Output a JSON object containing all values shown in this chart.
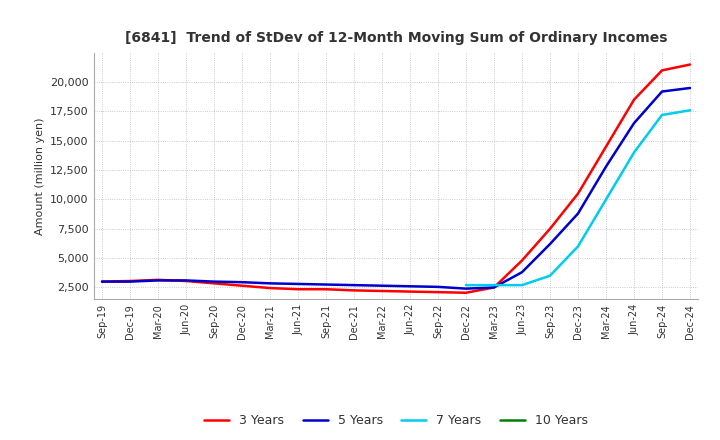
{
  "title": "[6841]  Trend of StDev of 12-Month Moving Sum of Ordinary Incomes",
  "ylabel": "Amount (million yen)",
  "ylim": [
    1500,
    22500
  ],
  "yticks": [
    2500,
    5000,
    7500,
    10000,
    12500,
    15000,
    17500,
    20000
  ],
  "background_color": "#ffffff",
  "grid_color": "#aaaaaa",
  "lines": {
    "3 Years": {
      "color": "#ff0000",
      "linewidth": 1.8
    },
    "5 Years": {
      "color": "#0000cc",
      "linewidth": 1.8
    },
    "7 Years": {
      "color": "#00ccee",
      "linewidth": 1.8
    },
    "10 Years": {
      "color": "#008000",
      "linewidth": 1.8
    }
  },
  "x_labels": [
    "Sep-19",
    "Dec-19",
    "Mar-20",
    "Jun-20",
    "Sep-20",
    "Dec-20",
    "Mar-21",
    "Jun-21",
    "Sep-21",
    "Dec-21",
    "Mar-22",
    "Jun-22",
    "Sep-22",
    "Dec-22",
    "Mar-23",
    "Jun-23",
    "Sep-23",
    "Dec-23",
    "Mar-24",
    "Jun-24",
    "Sep-24",
    "Dec-24"
  ],
  "data": {
    "3 Years": [
      3000,
      3050,
      3150,
      3050,
      2850,
      2650,
      2450,
      2350,
      2350,
      2250,
      2200,
      2150,
      2100,
      2050,
      2500,
      4800,
      7500,
      10500,
      14500,
      18500,
      21000,
      21500
    ],
    "5 Years": [
      3000,
      3000,
      3100,
      3100,
      3000,
      2950,
      2850,
      2800,
      2750,
      2700,
      2650,
      2600,
      2550,
      2400,
      2500,
      3800,
      6200,
      8800,
      12800,
      16500,
      19200,
      19500
    ],
    "7 Years": [
      null,
      null,
      null,
      null,
      null,
      null,
      null,
      null,
      null,
      null,
      null,
      null,
      null,
      2700,
      2700,
      2700,
      3500,
      6000,
      10000,
      14000,
      17200,
      17600
    ],
    "10 Years": [
      null,
      null,
      null,
      null,
      null,
      null,
      null,
      null,
      null,
      null,
      null,
      null,
      null,
      null,
      null,
      null,
      null,
      null,
      null,
      null,
      null,
      null
    ]
  }
}
